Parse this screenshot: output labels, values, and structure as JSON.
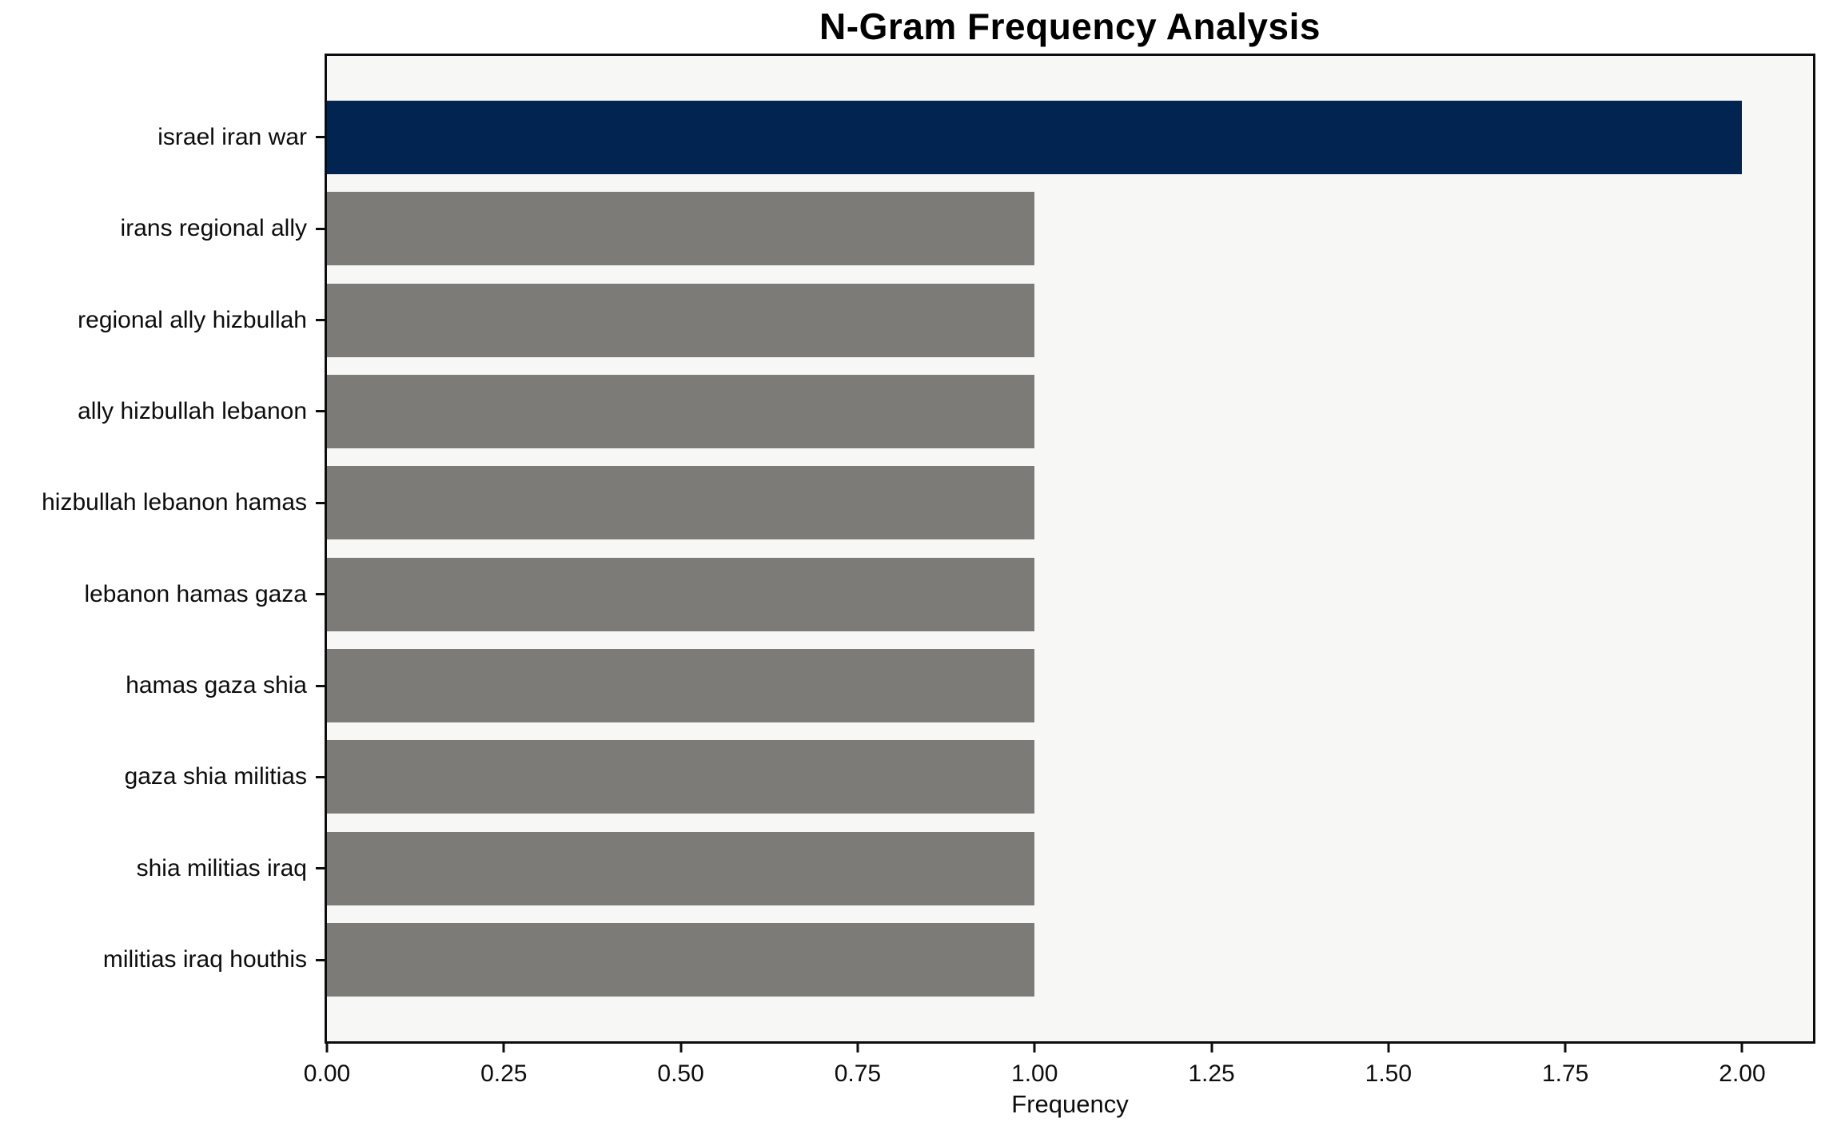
{
  "colors": {
    "highlight_bar": "#012550",
    "default_bar": "#7c7b78",
    "plot_background": "#f7f7f6",
    "spine": "#0d0d0d",
    "text": "#0d0d0d"
  },
  "chart_data": {
    "type": "bar",
    "orientation": "horizontal",
    "title": "N-Gram Frequency Analysis",
    "xlabel": "Frequency",
    "ylabel": "",
    "categories": [
      "israel iran war",
      "irans regional ally",
      "regional ally hizbullah",
      "ally hizbullah lebanon",
      "hizbullah lebanon hamas",
      "lebanon hamas gaza",
      "hamas gaza shia",
      "gaza shia militias",
      "shia militias iraq",
      "militias iraq houthis"
    ],
    "values": [
      2,
      1,
      1,
      1,
      1,
      1,
      1,
      1,
      1,
      1
    ],
    "bar_colors": [
      "#012550",
      "#7c7b78",
      "#7c7b78",
      "#7c7b78",
      "#7c7b78",
      "#7c7b78",
      "#7c7b78",
      "#7c7b78",
      "#7c7b78",
      "#7c7b78"
    ],
    "xlim": [
      0,
      2.1
    ],
    "xticks": [
      0,
      0.25,
      0.5,
      0.75,
      1,
      1.25,
      1.5,
      1.75,
      2
    ],
    "xtick_labels": [
      "0.00",
      "0.25",
      "0.50",
      "0.75",
      "1.00",
      "1.25",
      "1.50",
      "1.75",
      "2.00"
    ],
    "grid": false,
    "legend": "none",
    "bar_height_fraction": 0.8
  }
}
